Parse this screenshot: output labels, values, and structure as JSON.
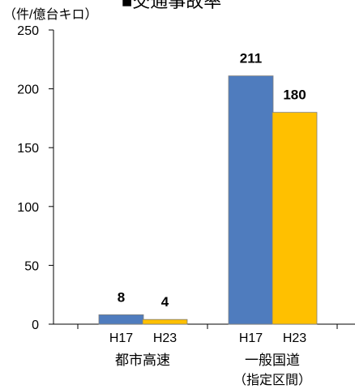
{
  "chart_data": {
    "type": "bar",
    "title": "■交通事故率",
    "unit": "（件/億台キロ）",
    "ylim": [
      0,
      250
    ],
    "yticks": [
      0,
      50,
      100,
      150,
      200,
      250
    ],
    "grid": false,
    "groups": [
      {
        "label": "都市高速",
        "sublabel": ""
      },
      {
        "label": "一般国道",
        "sublabel": "（指定区間）"
      }
    ],
    "series": [
      {
        "categories": [
          "H17",
          "H17"
        ],
        "values": [
          8,
          211
        ],
        "color": "#4F7CBE"
      },
      {
        "categories": [
          "H23",
          "H23"
        ],
        "values": [
          4,
          180
        ],
        "color": "#FFC000"
      }
    ]
  }
}
